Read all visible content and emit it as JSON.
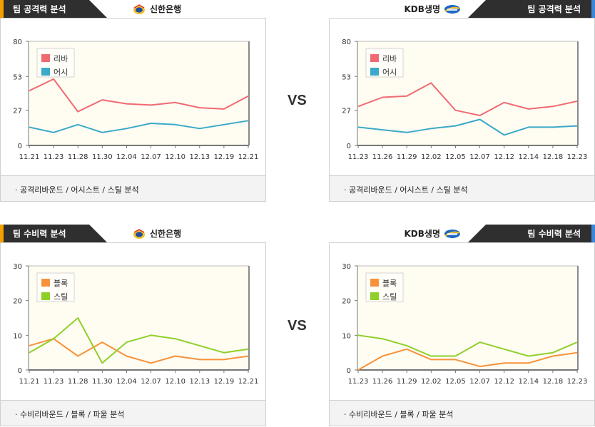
{
  "vs_label": "VS",
  "panels": [
    {
      "id": "p-attack-left",
      "side": "left",
      "title": "팀 공격력 분석",
      "team": "신한은행",
      "team_logo": "shinhan-bank-logo-icon",
      "footer": "· 공격리바운드 / 어시스트 / 스틸 분석",
      "chart_data": {
        "type": "line",
        "categories": [
          "11.21",
          "11.23",
          "11.28",
          "11.30",
          "12.04",
          "12.07",
          "12.10",
          "12.13",
          "12.19",
          "12.21"
        ],
        "yticks": [
          0,
          27,
          53,
          80
        ],
        "ylim": [
          0,
          80
        ],
        "legend_position": "top-left",
        "grid": false,
        "series": [
          {
            "name": "리바",
            "color": "#f06a72",
            "values": [
              42,
              51,
              26,
              35,
              32,
              31,
              33,
              29,
              28,
              38
            ]
          },
          {
            "name": "어시",
            "color": "#3ba9c9",
            "values": [
              14,
              10,
              16,
              10,
              13,
              17,
              16,
              13,
              16,
              19
            ]
          }
        ]
      }
    },
    {
      "id": "p-attack-right",
      "side": "right",
      "title": "팀 공격력 분석",
      "team": "KDB생명",
      "team_logo": "kdb-winnus-logo-icon",
      "footer": "· 공격리바운드 / 어시스트 / 스틸 분석",
      "chart_data": {
        "type": "line",
        "categories": [
          "11.23",
          "11.26",
          "11.29",
          "12.02",
          "12.05",
          "12.07",
          "12.12",
          "12.14",
          "12.18",
          "12.23"
        ],
        "yticks": [
          0,
          27,
          53,
          80
        ],
        "ylim": [
          0,
          80
        ],
        "legend_position": "top-left",
        "grid": false,
        "series": [
          {
            "name": "리바",
            "color": "#f06a72",
            "values": [
              30,
              37,
              38,
              48,
              27,
              23,
              33,
              28,
              30,
              34
            ]
          },
          {
            "name": "어시",
            "color": "#3ba9c9",
            "values": [
              14,
              12,
              10,
              13,
              15,
              20,
              8,
              14,
              14,
              15
            ]
          }
        ]
      }
    },
    {
      "id": "p-defense-left",
      "side": "left",
      "title": "팀 수비력 분석",
      "team": "신한은행",
      "team_logo": "shinhan-bank-logo-icon",
      "footer": "· 수비리바운드 / 블록 / 파울 분석",
      "chart_data": {
        "type": "line",
        "categories": [
          "11.21",
          "11.23",
          "11.28",
          "11.30",
          "12.04",
          "12.07",
          "12.10",
          "12.13",
          "12.19",
          "12.21"
        ],
        "yticks": [
          0,
          10,
          20,
          30
        ],
        "ylim": [
          0,
          30
        ],
        "legend_position": "top-left",
        "grid": false,
        "series": [
          {
            "name": "블록",
            "color": "#f7923a",
            "values": [
              7,
              9,
              4,
              8,
              4,
              2,
              4,
              3,
              3,
              4
            ]
          },
          {
            "name": "스틸",
            "color": "#8fcf2a",
            "values": [
              5,
              9,
              15,
              2,
              8,
              10,
              9,
              7,
              5,
              6
            ]
          }
        ]
      }
    },
    {
      "id": "p-defense-right",
      "side": "right",
      "title": "팀 수비력 분석",
      "team": "KDB생명",
      "team_logo": "kdb-winnus-logo-icon",
      "footer": "· 수비리바운드 / 블록 / 파울 분석",
      "chart_data": {
        "type": "line",
        "categories": [
          "11.23",
          "11.26",
          "11.29",
          "12.02",
          "12.05",
          "12.07",
          "12.12",
          "12.14",
          "12.18",
          "12.23"
        ],
        "yticks": [
          0,
          10,
          20,
          30
        ],
        "ylim": [
          0,
          30
        ],
        "legend_position": "top-left",
        "grid": false,
        "series": [
          {
            "name": "블록",
            "color": "#f7923a",
            "values": [
              0,
              4,
              6,
              3,
              3,
              1,
              2,
              2,
              4,
              5
            ]
          },
          {
            "name": "스틸",
            "color": "#8fcf2a",
            "values": [
              10,
              9,
              7,
              4,
              4,
              8,
              6,
              4,
              5,
              8
            ]
          }
        ]
      }
    }
  ]
}
